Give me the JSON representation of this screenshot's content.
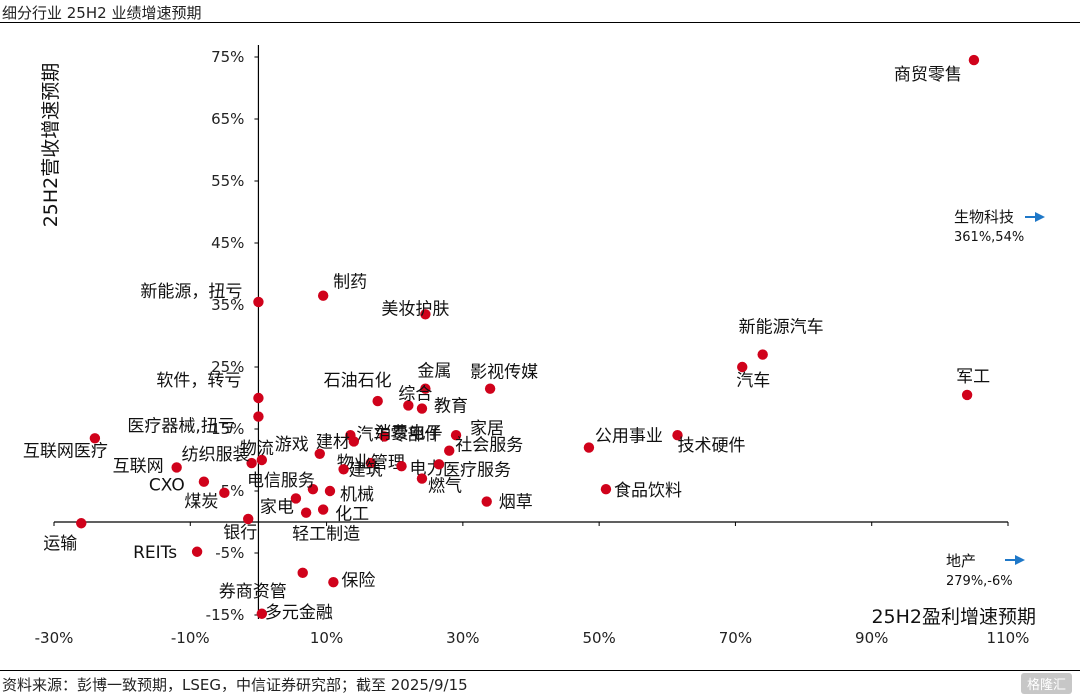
{
  "title": "细分行业 25H2 业绩增速预期",
  "source": "资料来源：彭博一致预期，LSEG，中信证券研究部；截至 2025/9/15",
  "watermark": "格隆汇",
  "chart_data": {
    "type": "scatter",
    "xlabel": "25H2盈利增速预期",
    "ylabel": "25H2营收增速预期",
    "xlim": [
      -30,
      110
    ],
    "ylim": [
      -15,
      75
    ],
    "x_ticks": [
      "-30%",
      "-10%",
      "10%",
      "30%",
      "50%",
      "70%",
      "90%",
      "110%"
    ],
    "y_ticks": [
      "-15%",
      "-5%",
      "5%",
      "15%",
      "25%",
      "35%",
      "45%",
      "55%",
      "65%",
      "75%"
    ],
    "marker_color": "#d0021b",
    "arrow_color": "#1f78c8",
    "points": [
      {
        "label": "商贸零售",
        "x": 105,
        "y": 74.5
      },
      {
        "label": "制药",
        "x": 9.5,
        "y": 36.5
      },
      {
        "label": "新能源，扭亏",
        "x": 0,
        "y": 35.5
      },
      {
        "label": "美妆护肤",
        "x": 24.5,
        "y": 33.5
      },
      {
        "label": "新能源汽车",
        "x": 74,
        "y": 27
      },
      {
        "label": "汽车",
        "x": 71,
        "y": 25
      },
      {
        "label": "军工",
        "x": 104,
        "y": 20.5
      },
      {
        "label": "软件，转亏",
        "x": 0,
        "y": 20
      },
      {
        "label": "影视传媒",
        "x": 34,
        "y": 21.5
      },
      {
        "label": "金属",
        "x": 24.5,
        "y": 21.5
      },
      {
        "label": "石油石化",
        "x": 17.5,
        "y": 19.5
      },
      {
        "label": "综合",
        "x": 22,
        "y": 18.8
      },
      {
        "label": "教育",
        "x": 24,
        "y": 18.3
      },
      {
        "label": "医疗器械,扭亏",
        "x": 0,
        "y": 17
      },
      {
        "label": "汽车零部件",
        "x": 13.5,
        "y": 14
      },
      {
        "label": "建材",
        "x": 14,
        "y": 13
      },
      {
        "label": "消费电子",
        "x": 18.5,
        "y": 13.8
      },
      {
        "label": "家居",
        "x": 29,
        "y": 14
      },
      {
        "label": "公用事业",
        "x": 48.5,
        "y": 12
      },
      {
        "label": "技术硬件",
        "x": 61.5,
        "y": 14
      },
      {
        "label": "互联网医疗",
        "x": -24,
        "y": 13.5
      },
      {
        "label": "物流",
        "x": 0.5,
        "y": 10
      },
      {
        "label": "游戏",
        "x": 9,
        "y": 11
      },
      {
        "label": "社会服务",
        "x": 28,
        "y": 11.5
      },
      {
        "label": "物业管理",
        "x": 16.5,
        "y": 9.5
      },
      {
        "label": "纺织服装",
        "x": -1,
        "y": 9.5
      },
      {
        "label": "电力",
        "x": 21,
        "y": 9
      },
      {
        "label": "医疗服务",
        "x": 26.5,
        "y": 9.3
      },
      {
        "label": "建筑",
        "x": 12.5,
        "y": 8.5
      },
      {
        "label": "互联网",
        "x": -12,
        "y": 8.8
      },
      {
        "label": "燃气",
        "x": 24,
        "y": 7
      },
      {
        "label": "CXO",
        "x": -8,
        "y": 6.5
      },
      {
        "label": "电信服务",
        "x": 8,
        "y": 5.3
      },
      {
        "label": "机械",
        "x": 10.5,
        "y": 5
      },
      {
        "label": "食品饮料",
        "x": 51,
        "y": 5.3
      },
      {
        "label": "煤炭",
        "x": -5,
        "y": 4.7
      },
      {
        "label": "家电",
        "x": 5.5,
        "y": 3.8
      },
      {
        "label": "烟草",
        "x": 33.5,
        "y": 3.3
      },
      {
        "label": "化工",
        "x": 9.5,
        "y": 2
      },
      {
        "label": "轻工制造",
        "x": 7,
        "y": 1.5
      },
      {
        "label": "银行",
        "x": -1.5,
        "y": 0.5
      },
      {
        "label": "运输",
        "x": -26,
        "y": -0.2
      },
      {
        "label": "REITs",
        "x": -9,
        "y": -4.8
      },
      {
        "label": "券商资管",
        "x": 6.5,
        "y": -8.2
      },
      {
        "label": "保险",
        "x": 11,
        "y": -9.7
      },
      {
        "label": "多元金融",
        "x": 0.5,
        "y": -14.8
      }
    ],
    "offscale": [
      {
        "label": "生物科技",
        "value": "361%,54%",
        "x": 361,
        "y": 54
      },
      {
        "label": "地产",
        "value": "279%,-6%",
        "x": 279,
        "y": -6
      }
    ]
  }
}
